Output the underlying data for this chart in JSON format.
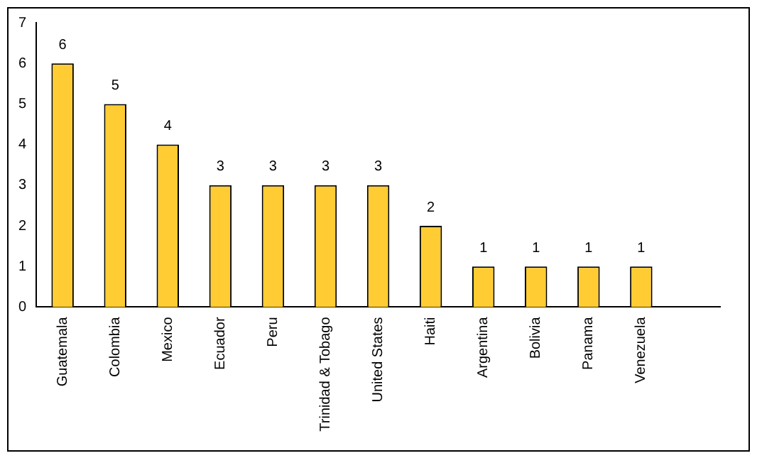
{
  "chart_data": {
    "type": "bar",
    "categories": [
      "Guatemala",
      "Colombia",
      "Mexico",
      "Ecuador",
      "Peru",
      "Trinidad & Tobago",
      "United States",
      "Haiti",
      "Argentina",
      "Bolivia",
      "Panama",
      "Venezuela",
      null
    ],
    "values": [
      6,
      5,
      4,
      3,
      3,
      3,
      3,
      2,
      1,
      1,
      1,
      1,
      null
    ],
    "color": "#ffcc33",
    "ylim": [
      0,
      7
    ],
    "yticks": [
      0,
      1,
      2,
      3,
      4,
      5,
      6,
      7
    ],
    "grid": false,
    "legend": false,
    "data_labels": true
  }
}
